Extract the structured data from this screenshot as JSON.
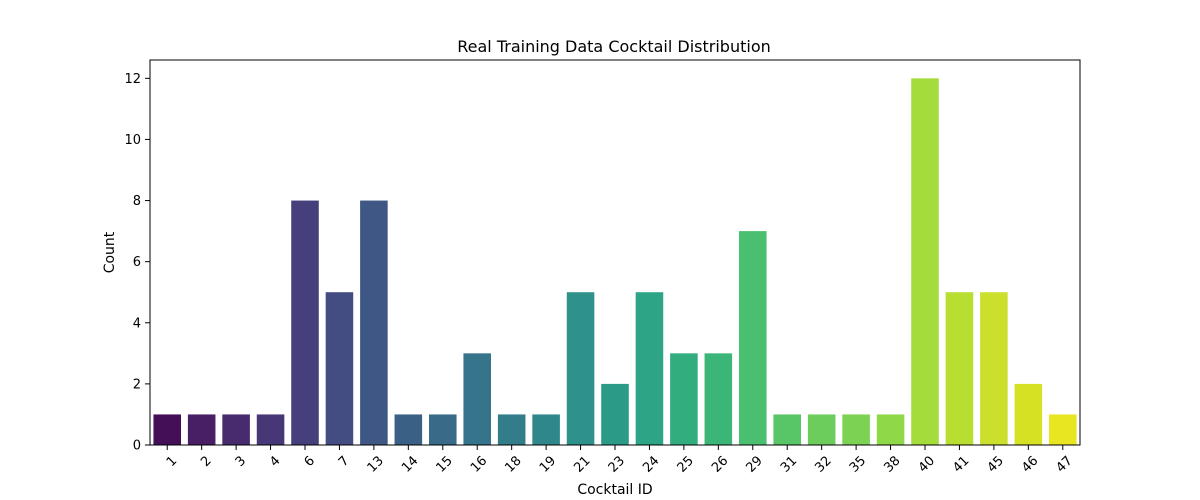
{
  "chart_data": {
    "type": "bar",
    "title": "Real Training Data Cocktail Distribution",
    "xlabel": "Cocktail ID",
    "ylabel": "Count",
    "ylim": [
      0,
      12.6
    ],
    "yticks": [
      "0",
      "2",
      "4",
      "6",
      "8",
      "10",
      "12"
    ],
    "grid": false,
    "legend": "none",
    "palette": "viridis",
    "categories": [
      "1",
      "2",
      "3",
      "4",
      "6",
      "7",
      "13",
      "14",
      "15",
      "16",
      "18",
      "19",
      "21",
      "23",
      "24",
      "25",
      "26",
      "29",
      "31",
      "32",
      "35",
      "38",
      "40",
      "41",
      "45",
      "46",
      "47"
    ],
    "values": [
      1,
      1,
      1,
      1,
      8,
      5,
      8,
      1,
      1,
      3,
      1,
      1,
      5,
      2,
      5,
      3,
      3,
      7,
      1,
      1,
      1,
      1,
      12,
      5,
      5,
      2,
      1
    ],
    "colors": [
      "#450f58",
      "#481e65",
      "#482b6e",
      "#473776",
      "#45407c",
      "#434d81",
      "#3f5785",
      "#3b6086",
      "#396a88",
      "#35748a",
      "#337d8b",
      "#30878b",
      "#2e918a",
      "#2b9a87",
      "#2da485",
      "#31ad7e",
      "#3bb678",
      "#49bf6f",
      "#58c566",
      "#6ccd5c",
      "#7cd253",
      "#8fd847",
      "#a3dc3b",
      "#b7de31",
      "#cae02c",
      "#d7e123",
      "#e8e521"
    ]
  }
}
